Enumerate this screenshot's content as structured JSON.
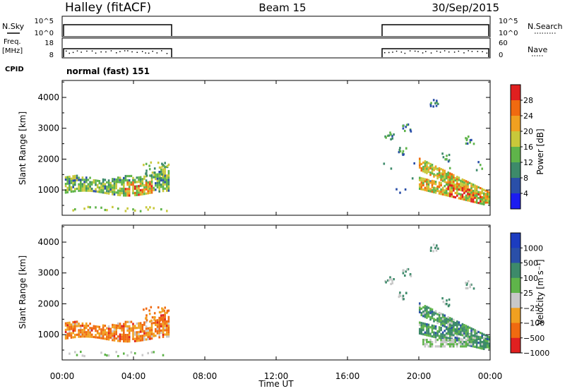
{
  "header": {
    "station": "Halley (fitACF)",
    "beam": "Beam 15",
    "date": "30/Sep/2015"
  },
  "aux_panels": {
    "nsky": {
      "left_label": "N.Sky",
      "left_ticks": [
        "10^5",
        "10^0"
      ],
      "right_label": "N.Search",
      "right_ticks": [
        "10^5",
        "10^0"
      ]
    },
    "freq": {
      "left_label_1": "Freq.",
      "left_label_2": "[MHz]",
      "left_ticks": [
        "18",
        "8"
      ],
      "right_label": "Nave",
      "right_ticks": [
        "60",
        "0"
      ]
    },
    "cpid": {
      "label": "CPID",
      "value": "normal (fast) 151"
    }
  },
  "x_axis": {
    "label": "Time UT",
    "ticks": [
      "00:00",
      "04:00",
      "08:00",
      "12:00",
      "16:00",
      "20:00",
      "00:00"
    ]
  },
  "colors": {
    "power_scale": [
      "#1c1cf0",
      "#2a4fa8",
      "#3d8a6a",
      "#5fb44a",
      "#c8c83a",
      "#f0a020",
      "#f06a10",
      "#e02020"
    ],
    "velocity_scale": [
      "#e02020",
      "#f06a10",
      "#f0a020",
      "#c8c8c8",
      "#5fb44a",
      "#3d8a6a",
      "#2a4fa8",
      "#1c3cc0"
    ]
  },
  "chart_data": [
    {
      "type": "heatmap",
      "panel": "power",
      "ylabel": "Slant Range [km]",
      "yticks": [
        "4000",
        "3000",
        "2000",
        "1000"
      ],
      "ylim": [
        180,
        4550
      ],
      "xlim_hours": [
        0,
        24
      ],
      "colorbar": {
        "label": "Power [dB]",
        "ticks": [
          "28",
          "24",
          "20",
          "16",
          "12",
          "8",
          "4"
        ],
        "range": [
          0,
          32
        ]
      },
      "regions": [
        {
          "t0": 0.1,
          "t1": 6.0,
          "r0": 900,
          "r1": 1500,
          "level": "moderate-high"
        },
        {
          "t0": 18.0,
          "t1": 24.0,
          "r0": 600,
          "r1": 1800,
          "level": "high"
        },
        {
          "t0": 19.0,
          "t1": 21.5,
          "r0": 2500,
          "r1": 3900,
          "level": "low"
        }
      ]
    },
    {
      "type": "heatmap",
      "panel": "velocity",
      "ylabel": "Slant Range [km]",
      "yticks": [
        "4000",
        "3000",
        "2000",
        "1000"
      ],
      "ylim": [
        180,
        4550
      ],
      "xlim_hours": [
        0,
        24
      ],
      "colorbar": {
        "label": "Velocity [m s⁻¹]",
        "ticks": [
          "1000",
          "500",
          "100",
          "25",
          "−25",
          "−100",
          "−500",
          "−1000"
        ],
        "range": [
          -1000,
          1000
        ]
      },
      "regions": [
        {
          "t0": 0.1,
          "t1": 6.0,
          "r0": 800,
          "r1": 1600,
          "level": "negative"
        },
        {
          "t0": 18.0,
          "t1": 24.0,
          "r0": 600,
          "r1": 1800,
          "level": "positive"
        }
      ]
    }
  ]
}
